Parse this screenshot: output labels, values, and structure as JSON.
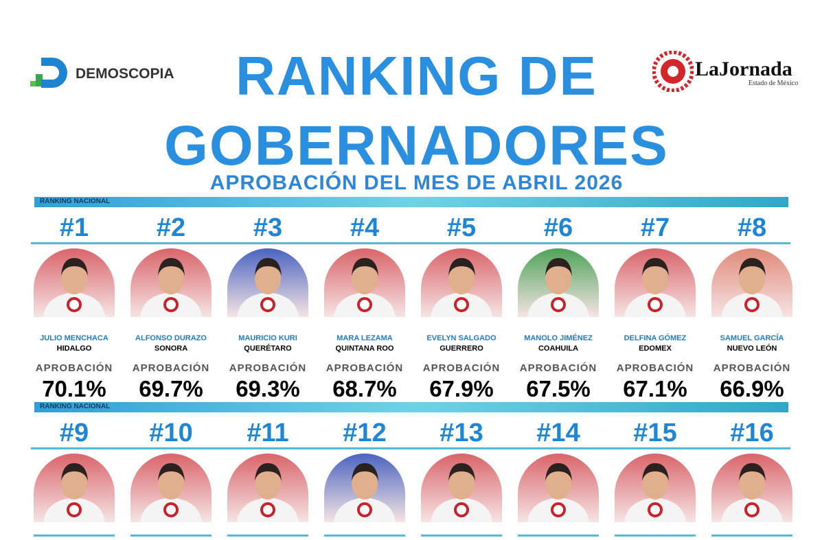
{
  "header": {
    "left_logo": "DEMOSCOPIA",
    "right_logo": "LaJornada",
    "right_logo_sub": "Estado de México",
    "title_line1": "RANKING DE",
    "title_line2": "GOBERNADORES",
    "subtitle": "APROBACIÓN DEL MES DE ABRIL 2026"
  },
  "sections": [
    {
      "label": "RANKING NACIONAL",
      "cards": [
        {
          "rank": "#1",
          "name": "JULIO MENCHACA",
          "state": "HIDALGO",
          "metric": "APROBACIÓN",
          "value": "70.1%",
          "color": "#d9656a"
        },
        {
          "rank": "#2",
          "name": "ALFONSO DURAZO",
          "state": "SONORA",
          "metric": "APROBACIÓN",
          "value": "69.7%",
          "color": "#d9656a"
        },
        {
          "rank": "#3",
          "name": "MAURICIO KURI",
          "state": "QUERÉTARO",
          "metric": "APROBACIÓN",
          "value": "69.3%",
          "color": "#4a64c0"
        },
        {
          "rank": "#4",
          "name": "MARA LEZAMA",
          "state": "QUINTANA ROO",
          "metric": "APROBACIÓN",
          "value": "68.7%",
          "color": "#d9656a"
        },
        {
          "rank": "#5",
          "name": "EVELYN SALGADO",
          "state": "GUERRERO",
          "metric": "APROBACIÓN",
          "value": "67.9%",
          "color": "#d9656a"
        },
        {
          "rank": "#6",
          "name": "MANOLO JIMÉNEZ",
          "state": "COAHUILA",
          "metric": "APROBACIÓN",
          "value": "67.5%",
          "color": "#4fa35a"
        },
        {
          "rank": "#7",
          "name": "DELFINA GÓMEZ",
          "state": "EDOMEX",
          "metric": "APROBACIÓN",
          "value": "67.1%",
          "color": "#d9656a"
        },
        {
          "rank": "#8",
          "name": "SAMUEL GARCÍA",
          "state": "NUEVO LEÓN",
          "metric": "APROBACIÓN",
          "value": "66.9%",
          "color": "#e08a7a"
        }
      ]
    },
    {
      "label": "RANKING NACIONAL",
      "cards": [
        {
          "rank": "#9",
          "color": "#d9656a"
        },
        {
          "rank": "#10",
          "color": "#d9656a"
        },
        {
          "rank": "#11",
          "color": "#d9656a"
        },
        {
          "rank": "#12",
          "color": "#4a64c0"
        },
        {
          "rank": "#13",
          "color": "#d9656a"
        },
        {
          "rank": "#14",
          "color": "#d9656a"
        },
        {
          "rank": "#15",
          "color": "#d9656a"
        },
        {
          "rank": "#16",
          "color": "#d9656a"
        }
      ]
    }
  ]
}
